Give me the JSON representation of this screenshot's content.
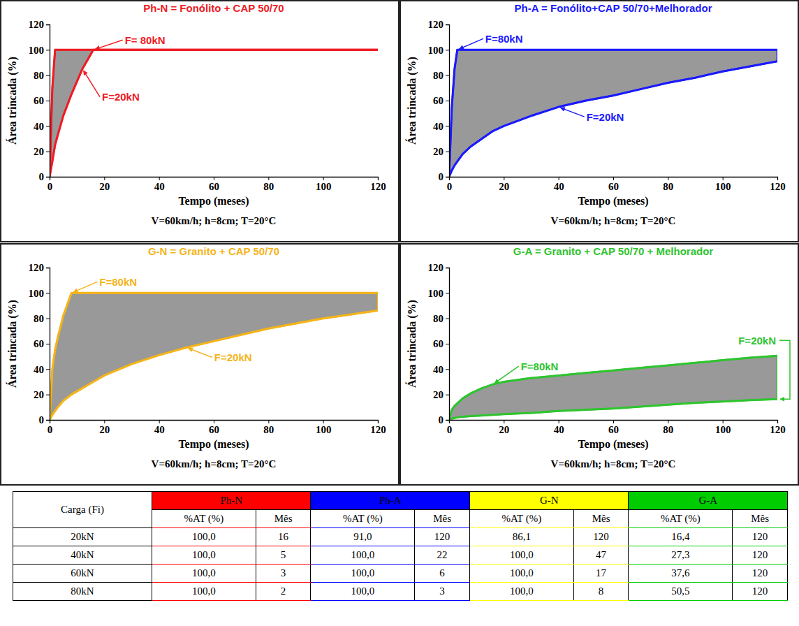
{
  "chart_data": [
    {
      "type": "area",
      "title": "Ph-N = Fonólito + CAP 50/70",
      "subtitle": "V=60km/h; h=8cm; T=20°C",
      "x_label": "Tempo (meses)",
      "y_label": "Área trincada (%)",
      "x": [
        0,
        1,
        2,
        3,
        5,
        8,
        12,
        16,
        20,
        30,
        40,
        50,
        60,
        70,
        80,
        90,
        100,
        110,
        120
      ],
      "series": [
        {
          "name": "F= 80kN",
          "color": "#ee1c25",
          "values": [
            0,
            70,
            100,
            100,
            100,
            100,
            100,
            100,
            100,
            100,
            100,
            100,
            100,
            100,
            100,
            100,
            100,
            100,
            100
          ]
        },
        {
          "name": "F=20kN",
          "color": "#ee1c25",
          "values": [
            0,
            12,
            25,
            33,
            48,
            65,
            85,
            100,
            100,
            100,
            100,
            100,
            100,
            100,
            100,
            100,
            100,
            100,
            100
          ]
        }
      ],
      "xlim": [
        0,
        120
      ],
      "xticks": [
        0,
        20,
        40,
        60,
        80,
        100,
        120
      ],
      "ylim": [
        0,
        120
      ],
      "yticks": [
        0,
        20,
        40,
        60,
        80,
        100,
        120
      ]
    },
    {
      "type": "area",
      "title": "Ph-A = Fonólito+CAP 50/70+Melhorador",
      "subtitle": "V=60km/h; h=8cm; T=20°C",
      "x_label": "Tempo (meses)",
      "y_label": "Área trincada (%)",
      "x": [
        0,
        1,
        2,
        3,
        5,
        8,
        12,
        16,
        20,
        30,
        40,
        50,
        60,
        70,
        80,
        90,
        100,
        110,
        120
      ],
      "series": [
        {
          "name": "F=80kN",
          "color": "#1a1aff",
          "values": [
            0,
            55,
            85,
            100,
            100,
            100,
            100,
            100,
            100,
            100,
            100,
            100,
            100,
            100,
            100,
            100,
            100,
            100,
            100
          ]
        },
        {
          "name": "F=20kN",
          "color": "#1a1aff",
          "values": [
            0,
            5,
            9,
            12,
            18,
            24,
            30,
            36,
            40,
            48,
            55,
            60,
            64,
            69,
            74,
            78,
            83,
            87,
            91
          ]
        }
      ],
      "xlim": [
        0,
        120
      ],
      "xticks": [
        0,
        20,
        40,
        60,
        80,
        100,
        120
      ],
      "ylim": [
        0,
        120
      ],
      "yticks": [
        0,
        20,
        40,
        60,
        80,
        100,
        120
      ]
    },
    {
      "type": "area",
      "title": "G-N = Granito + CAP 50/70",
      "subtitle": "V=60km/h; h=8cm; T=20°C",
      "x_label": "Tempo (meses)",
      "y_label": "Área trincada (%)",
      "x": [
        0,
        1,
        2,
        3,
        5,
        8,
        12,
        16,
        20,
        30,
        40,
        50,
        60,
        70,
        80,
        90,
        100,
        110,
        120
      ],
      "series": [
        {
          "name": "F=80kN",
          "color": "#f4b41a",
          "values": [
            0,
            40,
            55,
            65,
            82,
            100,
            100,
            100,
            100,
            100,
            100,
            100,
            100,
            100,
            100,
            100,
            100,
            100,
            100
          ]
        },
        {
          "name": "F=20kN",
          "color": "#f4b41a",
          "values": [
            0,
            4,
            7,
            10,
            15,
            20,
            25,
            30,
            35,
            44,
            51,
            57,
            62,
            67,
            72,
            76,
            80,
            83,
            86.1
          ]
        }
      ],
      "xlim": [
        0,
        120
      ],
      "xticks": [
        0,
        20,
        40,
        60,
        80,
        100,
        120
      ],
      "ylim": [
        0,
        120
      ],
      "yticks": [
        0,
        20,
        40,
        60,
        80,
        100,
        120
      ]
    },
    {
      "type": "area",
      "title": "G-A = Granito + CAP 50/70 + Melhorador",
      "subtitle": "V=60km/h; h=8cm; T=20°C",
      "x_label": "Tempo (meses)",
      "y_label": "Área trincada (%)",
      "x": [
        0,
        1,
        2,
        3,
        5,
        8,
        12,
        16,
        20,
        30,
        40,
        50,
        60,
        70,
        80,
        90,
        100,
        110,
        120
      ],
      "series": [
        {
          "name": "F=80kN",
          "color": "#2fc42f",
          "values": [
            0,
            8,
            11,
            13,
            17,
            21,
            25,
            28,
            30,
            33,
            35,
            37,
            39,
            41,
            43,
            45,
            47,
            49,
            50.5
          ]
        },
        {
          "name": "F=20kN",
          "color": "#2fc42f",
          "values": [
            0,
            1,
            1.5,
            2,
            2.5,
            3,
            3.5,
            4,
            4.5,
            5.5,
            7,
            8,
            9,
            10.5,
            12,
            13.5,
            14.5,
            15.5,
            16.4
          ]
        }
      ],
      "xlim": [
        0,
        120
      ],
      "xticks": [
        0,
        20,
        40,
        60,
        80,
        100,
        120
      ],
      "ylim": [
        0,
        120
      ],
      "yticks": [
        0,
        20,
        40,
        60,
        80,
        100,
        120
      ]
    }
  ],
  "table": {
    "header": [
      "Carga (Fi)"
    ],
    "groups": [
      {
        "name": "Ph-N",
        "color": "#ff0000"
      },
      {
        "name": "Ph-A",
        "color": "#0000ff"
      },
      {
        "name": "G-N",
        "color": "#ffff00"
      },
      {
        "name": "G-A",
        "color": "#00cc00"
      }
    ],
    "subheaders": [
      "%AT (%)",
      "Mês",
      "%AT (%)",
      "Mês",
      "%AT (%)",
      "Mês",
      "%AT (%)",
      "Mês"
    ],
    "rows": [
      [
        "20kN",
        "100,0",
        "16",
        "91,0",
        "120",
        "86,1",
        "120",
        "16,4",
        "120"
      ],
      [
        "40kN",
        "100,0",
        "5",
        "100,0",
        "22",
        "100,0",
        "47",
        "27,3",
        "120"
      ],
      [
        "60kN",
        "100,0",
        "3",
        "100,0",
        "6",
        "100,0",
        "17",
        "37,6",
        "120"
      ],
      [
        "80kN",
        "100,0",
        "2",
        "100,0",
        "3",
        "100,0",
        "8",
        "50,5",
        "120"
      ]
    ]
  }
}
